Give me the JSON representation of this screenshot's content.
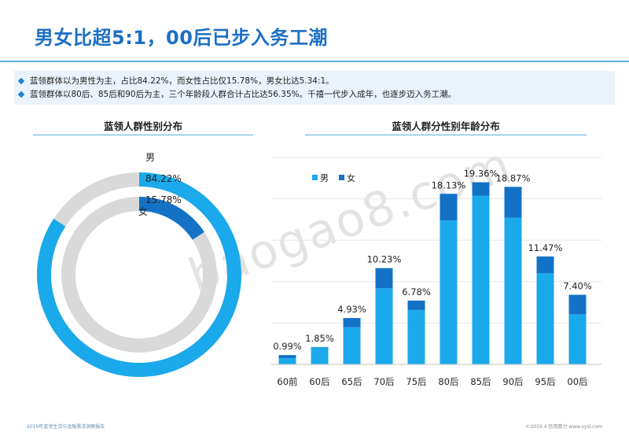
{
  "header": {
    "title": "男女比超5:1，00后已步入务工潮"
  },
  "summary": {
    "bullets": [
      "蓝领群体以为男性为主，占比84.22%，而女性占比仅15.78%，男女比达5.34:1。",
      "蓝领群体以80后、85后和90后为主，三个年龄段人群合计占比达56.35%。千禧一代步入成年，也逐步迈入务工潮。"
    ]
  },
  "left_chart_title": "蓝领人群性别分布",
  "right_chart_title": "蓝领人群分性别年龄分布",
  "watermark": "baogao8.com",
  "footer": {
    "left": "2019年蓝领生活与金融需求洞察报告",
    "right": "©2019.4 信用算力 www.xysl.com"
  },
  "colors": {
    "male": "#1aa9ea",
    "female": "#1372c6",
    "ring_bg": "#d9d9d9",
    "title": "#1d6fc4"
  },
  "chart_data": [
    {
      "type": "pie",
      "title": "蓝领人群性别分布",
      "categories": [
        "男",
        "女"
      ],
      "values": [
        84.22,
        15.78
      ],
      "labels": [
        "84.22%",
        "15.78%"
      ]
    },
    {
      "type": "bar",
      "title": "蓝领人群分性别年龄分布",
      "categories": [
        "60前",
        "60后",
        "65后",
        "70后",
        "75后",
        "80后",
        "85后",
        "90后",
        "95后",
        "00后"
      ],
      "totals": [
        0.99,
        1.85,
        4.93,
        10.23,
        6.78,
        18.13,
        19.36,
        18.87,
        11.47,
        7.4
      ],
      "total_labels": [
        "0.99%",
        "1.85%",
        "4.93%",
        "10.23%",
        "6.78%",
        "18.13%",
        "19.36%",
        "18.87%",
        "11.47%",
        "7.40%"
      ],
      "series": [
        {
          "name": "男",
          "values": [
            0.65,
            1.82,
            3.95,
            8.1,
            5.78,
            15.3,
            17.94,
            15.59,
            9.7,
            5.32
          ]
        },
        {
          "name": "女",
          "values": [
            0.34,
            0.03,
            0.98,
            2.13,
            1.0,
            2.83,
            1.42,
            3.28,
            1.77,
            2.08
          ]
        }
      ],
      "stacked": true,
      "ylim": [
        0,
        22
      ],
      "grid": true,
      "legend": "top-left"
    }
  ]
}
